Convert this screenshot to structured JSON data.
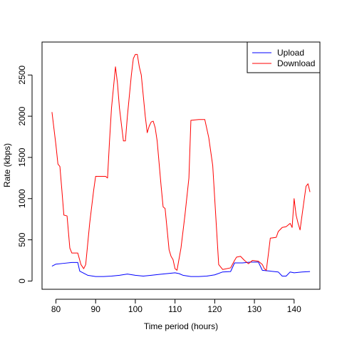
{
  "chart_data": {
    "type": "line",
    "title": "",
    "xlabel": "Time period (hours)",
    "ylabel": "Rate (kbps)",
    "xlim": [
      76.5,
      146.5
    ],
    "ylim": [
      -100,
      2900
    ],
    "x_ticks": [
      80,
      90,
      100,
      110,
      120,
      130,
      140
    ],
    "y_ticks": [
      0,
      500,
      1000,
      1500,
      2000,
      2500
    ],
    "grid": false,
    "legend_position": "top-right",
    "series": [
      {
        "name": "Upload",
        "color": "#0000ff",
        "points": [
          [
            79,
            180
          ],
          [
            80,
            205
          ],
          [
            82,
            215
          ],
          [
            84,
            225
          ],
          [
            85.5,
            225
          ],
          [
            86,
            120
          ],
          [
            88,
            70
          ],
          [
            90,
            55
          ],
          [
            92,
            55
          ],
          [
            94,
            60
          ],
          [
            96,
            70
          ],
          [
            98,
            85
          ],
          [
            100,
            70
          ],
          [
            102,
            60
          ],
          [
            104,
            70
          ],
          [
            106,
            80
          ],
          [
            108,
            90
          ],
          [
            110,
            100
          ],
          [
            111,
            90
          ],
          [
            112,
            70
          ],
          [
            114,
            55
          ],
          [
            116,
            55
          ],
          [
            118,
            60
          ],
          [
            120,
            75
          ],
          [
            122,
            110
          ],
          [
            124,
            115
          ],
          [
            125,
            220
          ],
          [
            127,
            220
          ],
          [
            129,
            230
          ],
          [
            131,
            230
          ],
          [
            132,
            130
          ],
          [
            134,
            120
          ],
          [
            136,
            110
          ],
          [
            137,
            60
          ],
          [
            138,
            60
          ],
          [
            139,
            110
          ],
          [
            140,
            100
          ],
          [
            142,
            110
          ],
          [
            144,
            115
          ]
        ]
      },
      {
        "name": "Download",
        "color": "#ff0000",
        "points": [
          [
            79,
            2050
          ],
          [
            80,
            1650
          ],
          [
            80.5,
            1420
          ],
          [
            81,
            1390
          ],
          [
            81.5,
            1100
          ],
          [
            82,
            800
          ],
          [
            82.8,
            790
          ],
          [
            83.5,
            400
          ],
          [
            84,
            340
          ],
          [
            85.5,
            340
          ],
          [
            86.3,
            200
          ],
          [
            87,
            150
          ],
          [
            87.5,
            200
          ],
          [
            88.5,
            700
          ],
          [
            89.5,
            1100
          ],
          [
            90,
            1270
          ],
          [
            92.5,
            1270
          ],
          [
            93,
            1250
          ],
          [
            93.5,
            1700
          ],
          [
            94,
            2100
          ],
          [
            95,
            2600
          ],
          [
            95.5,
            2400
          ],
          [
            96,
            2100
          ],
          [
            97,
            1700
          ],
          [
            97.5,
            1700
          ],
          [
            98,
            2000
          ],
          [
            99,
            2500
          ],
          [
            99.5,
            2700
          ],
          [
            100,
            2750
          ],
          [
            100.5,
            2750
          ],
          [
            101,
            2600
          ],
          [
            101.5,
            2500
          ],
          [
            102.5,
            2000
          ],
          [
            103,
            1800
          ],
          [
            103.5,
            1880
          ],
          [
            104,
            1930
          ],
          [
            104.5,
            1940
          ],
          [
            105,
            1860
          ],
          [
            105.5,
            1700
          ],
          [
            106.5,
            1150
          ],
          [
            107,
            900
          ],
          [
            107.5,
            880
          ],
          [
            108.5,
            380
          ],
          [
            109,
            300
          ],
          [
            109.5,
            260
          ],
          [
            110,
            150
          ],
          [
            110.5,
            130
          ],
          [
            111.5,
            400
          ],
          [
            112.5,
            800
          ],
          [
            113.5,
            1250
          ],
          [
            114,
            1950
          ],
          [
            116,
            1960
          ],
          [
            117.5,
            1960
          ],
          [
            118.5,
            1740
          ],
          [
            119.5,
            1400
          ],
          [
            120.5,
            600
          ],
          [
            121,
            200
          ],
          [
            122,
            140
          ],
          [
            124,
            160
          ],
          [
            125,
            250
          ],
          [
            125.5,
            290
          ],
          [
            126.5,
            300
          ],
          [
            127.5,
            250
          ],
          [
            128.5,
            210
          ],
          [
            129.5,
            250
          ],
          [
            131,
            240
          ],
          [
            132,
            200
          ],
          [
            132.5,
            150
          ],
          [
            133,
            130
          ],
          [
            133.5,
            320
          ],
          [
            134,
            520
          ],
          [
            135.5,
            530
          ],
          [
            136,
            600
          ],
          [
            137,
            650
          ],
          [
            138,
            660
          ],
          [
            139,
            700
          ],
          [
            139.5,
            650
          ],
          [
            140,
            1000
          ],
          [
            140.5,
            800
          ],
          [
            141,
            700
          ],
          [
            141.5,
            620
          ],
          [
            142,
            800
          ],
          [
            143,
            1150
          ],
          [
            143.5,
            1180
          ],
          [
            144,
            1080
          ]
        ]
      }
    ]
  }
}
